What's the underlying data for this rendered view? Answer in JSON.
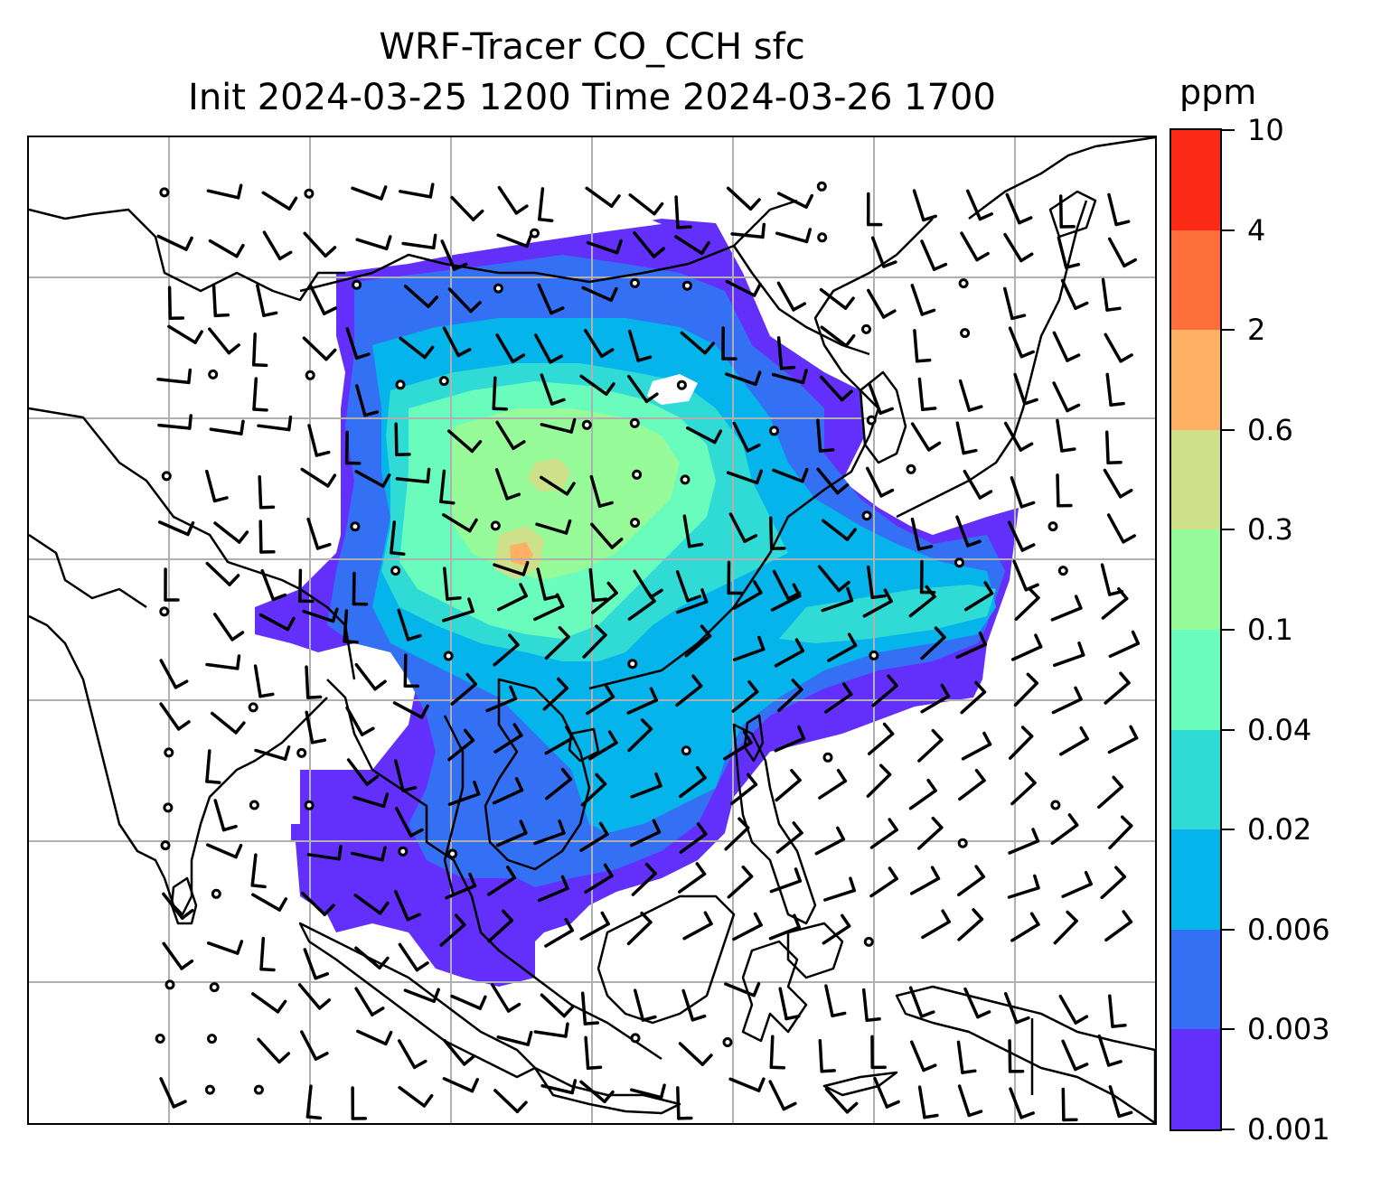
{
  "title": {
    "line1": "WRF-Tracer CO_CCH sfc",
    "line2": "Init 2024-03-25 1200 Time 2024-03-26 1700"
  },
  "colorbar": {
    "unit": "ppm",
    "levels": [
      "0.001",
      "0.003",
      "0.006",
      "0.02",
      "0.04",
      "0.1",
      "0.3",
      "0.6",
      "2",
      "4",
      "10"
    ],
    "colors": [
      "#6330fb",
      "#3470f4",
      "#04b4eb",
      "#30dbd6",
      "#6afcbd",
      "#97fb99",
      "#cfe08a",
      "#feb165",
      "#fd6e3a",
      "#fb2a16"
    ]
  },
  "map": {
    "variable": "CO_CCH",
    "level": "sfc",
    "coastline_color": "#000000",
    "gridline_color": "#b0b0b0",
    "wind_barb_color": "#000000"
  }
}
